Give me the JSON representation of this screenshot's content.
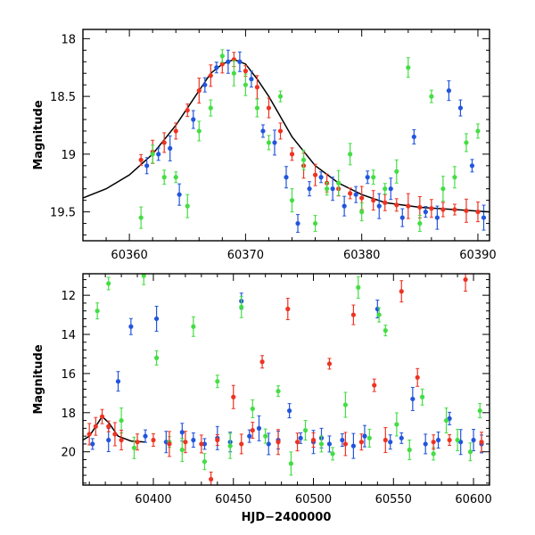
{
  "chart_data": [
    {
      "type": "scatter",
      "title": "",
      "xlabel": "",
      "ylabel": "Magnitude",
      "xlim": [
        60356,
        60391
      ],
      "ylim": [
        19.75,
        17.92
      ],
      "y_inverted": true,
      "xticks": [
        60360,
        60370,
        60380,
        60390
      ],
      "xtick_labels": [
        "60360",
        "60370",
        "60380",
        "60390"
      ],
      "yticks": [
        18,
        18.5,
        19,
        19.5
      ],
      "ytick_labels": [
        "18",
        "18.5",
        "19",
        "19.5"
      ],
      "grid": false,
      "legend": null,
      "series": [
        {
          "color": "#ee3322",
          "marker": "circle-errorbar",
          "x": [
            60361,
            60362,
            60363,
            60364,
            60365,
            60366,
            60367,
            60368,
            60369,
            60370,
            60371,
            60372,
            60373,
            60374,
            60375,
            60376,
            60377,
            60378,
            60379,
            60380,
            60381,
            60382,
            60383,
            60384,
            60385,
            60386,
            60387,
            60388,
            60389,
            60390
          ],
          "y": [
            19.05,
            18.98,
            18.9,
            18.8,
            18.62,
            18.45,
            18.32,
            18.22,
            18.18,
            18.28,
            18.42,
            18.6,
            18.8,
            19.0,
            19.1,
            19.18,
            19.25,
            19.3,
            19.34,
            19.38,
            19.4,
            19.42,
            19.44,
            19.45,
            19.46,
            19.47,
            19.48,
            19.48,
            19.49,
            19.5
          ]
        },
        {
          "color": "#2255dd",
          "marker": "circle-errorbar",
          "x": [
            60361.5,
            60362.5,
            60363.5,
            60364.3,
            60365.5,
            60366.5,
            60367.5,
            60368.5,
            60369.5,
            60370.5,
            60371.5,
            60372.5,
            60373.5,
            60374.5,
            60375.5,
            60376.5,
            60377.5,
            60378.5,
            60379.5,
            60380.5,
            60381.5,
            60382.5,
            60383.5,
            60384.5,
            60385.5,
            60386.5,
            60387.5,
            60388.5,
            60389.5,
            60390.5
          ],
          "y": [
            19.1,
            19.0,
            18.95,
            19.35,
            18.7,
            18.4,
            18.25,
            18.2,
            18.2,
            18.35,
            18.8,
            18.9,
            19.2,
            19.6,
            19.3,
            19.2,
            19.3,
            19.45,
            19.35,
            19.2,
            19.45,
            19.3,
            19.55,
            18.85,
            19.5,
            19.55,
            18.45,
            18.6,
            19.1,
            19.55
          ]
        },
        {
          "color": "#44dd44",
          "marker": "circle-errorbar",
          "x": [
            60361,
            60362,
            60363,
            60364,
            60365,
            60366,
            60367,
            60368,
            60369,
            60370,
            60371,
            60372,
            60373,
            60374,
            60375,
            60376,
            60377,
            60378,
            60379,
            60380,
            60381,
            60382,
            60383,
            60384,
            60385,
            60386,
            60387,
            60388,
            60389,
            60390
          ],
          "y": [
            19.55,
            19.0,
            19.2,
            19.2,
            19.45,
            18.8,
            18.6,
            18.15,
            18.3,
            18.4,
            18.6,
            18.9,
            18.5,
            19.4,
            19.05,
            19.6,
            19.3,
            19.25,
            19.0,
            19.5,
            19.2,
            19.3,
            19.15,
            18.25,
            19.6,
            18.5,
            19.3,
            19.2,
            18.9,
            18.8
          ]
        }
      ],
      "model_curve": {
        "color": "#000000",
        "x": [
          60356,
          60358,
          60360,
          60362,
          60364,
          60366,
          60367,
          60368,
          60369,
          60370,
          60371,
          60372,
          60374,
          60376,
          60378,
          60380,
          60382,
          60385,
          60388,
          60391
        ],
        "y": [
          19.38,
          19.3,
          19.18,
          19.0,
          18.75,
          18.45,
          18.3,
          18.22,
          18.18,
          18.22,
          18.35,
          18.5,
          18.85,
          19.1,
          19.25,
          19.35,
          19.42,
          19.46,
          19.48,
          19.5
        ]
      }
    },
    {
      "type": "scatter",
      "title": "",
      "xlabel": "HJD−2400000",
      "ylabel": "Magnitude",
      "xlim": [
        60356,
        60610
      ],
      "ylim": [
        21.7,
        10.9
      ],
      "y_inverted": true,
      "xticks": [
        60400,
        60450,
        60500,
        60550,
        60600
      ],
      "xtick_labels": [
        "60400",
        "60450",
        "60500",
        "60550",
        "60600"
      ],
      "yticks": [
        12,
        14,
        16,
        18,
        20
      ],
      "ytick_labels": [
        "12",
        "14",
        "16",
        "18",
        "20"
      ],
      "grid": false,
      "legend": null,
      "series": [
        {
          "color": "#2255dd",
          "marker": "circle-errorbar",
          "x": [
            60362,
            60372,
            60378,
            60386,
            60395,
            60402,
            60408,
            60418,
            60425,
            60432,
            60440,
            60448,
            60455,
            60460,
            60466,
            60472,
            60478,
            60485,
            60492,
            60500,
            60505,
            60510,
            60518,
            60525,
            60532,
            60540,
            60548,
            60555,
            60562,
            60570,
            60578,
            60585,
            60592,
            60600,
            60605
          ],
          "y": [
            19.6,
            19.4,
            16.4,
            13.6,
            19.2,
            13.2,
            19.5,
            19.0,
            19.4,
            19.6,
            19.3,
            19.5,
            12.3,
            19.2,
            18.8,
            19.6,
            19.4,
            17.9,
            19.3,
            19.5,
            19.3,
            19.6,
            19.4,
            19.7,
            19.2,
            12.7,
            19.5,
            19.3,
            17.3,
            19.6,
            19.4,
            18.3,
            19.5,
            19.4,
            19.6
          ]
        },
        {
          "color": "#44dd44",
          "marker": "circle-errorbar",
          "x": [
            60365,
            60372,
            60380,
            60388,
            60394,
            60402,
            60410,
            60418,
            60425,
            60432,
            60440,
            60448,
            60455,
            60462,
            60470,
            60478,
            60486,
            60495,
            60505,
            60512,
            60520,
            60528,
            60535,
            60541,
            60545,
            60552,
            60560,
            60568,
            60575,
            60583,
            60590,
            60598,
            60604
          ],
          "y": [
            12.8,
            11.4,
            18.4,
            19.8,
            11.0,
            15.2,
            19.5,
            19.9,
            13.6,
            20.5,
            16.4,
            19.7,
            12.6,
            17.8,
            19.2,
            16.9,
            20.6,
            18.9,
            19.6,
            20.1,
            17.6,
            11.6,
            19.3,
            13.0,
            13.8,
            18.6,
            19.9,
            17.2,
            20.1,
            18.4,
            19.4,
            20.0,
            17.9
          ]
        },
        {
          "color": "#ee3322",
          "marker": "circle-errorbar",
          "x": [
            60360,
            60364,
            60368,
            60372,
            60376,
            60380,
            60390,
            60400,
            60410,
            60420,
            60430,
            60436,
            60440,
            60450,
            60455,
            60462,
            60468,
            60478,
            60484,
            60490,
            60500,
            60510,
            60520,
            60525,
            60530,
            60538,
            60545,
            60555,
            60565,
            60575,
            60585,
            60595,
            60605
          ],
          "y": [
            19.1,
            18.7,
            18.2,
            18.7,
            19.1,
            19.4,
            19.5,
            19.4,
            19.6,
            19.5,
            19.6,
            21.4,
            19.4,
            17.2,
            19.6,
            18.9,
            15.4,
            19.5,
            12.7,
            19.5,
            19.4,
            15.5,
            19.6,
            13.0,
            19.5,
            16.6,
            19.4,
            11.8,
            16.2,
            19.5,
            19.4,
            11.2,
            19.5
          ]
        }
      ],
      "model_curve": {
        "color": "#000000",
        "x": [
          60356,
          60360,
          60364,
          60368,
          60372,
          60378,
          60386,
          60395
        ],
        "y": [
          19.4,
          19.2,
          18.7,
          18.2,
          18.5,
          19.2,
          19.45,
          19.5
        ]
      }
    }
  ]
}
